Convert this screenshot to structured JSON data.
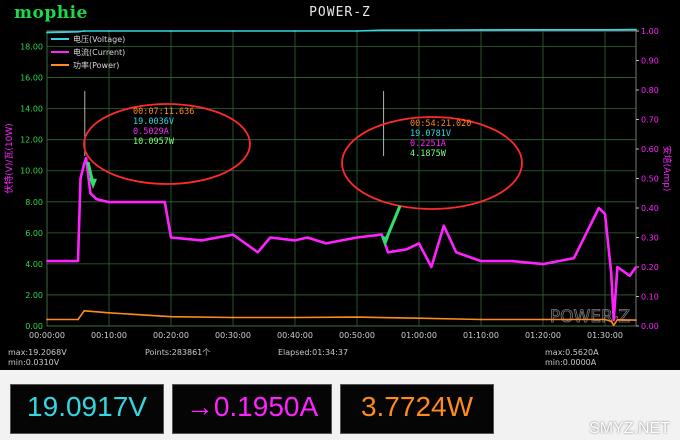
{
  "window": {
    "brand": "mophie",
    "title": "POWER-Z"
  },
  "chart_data": {
    "type": "line",
    "x_ticks": [
      "00:00:00",
      "00:10:00",
      "00:20:00",
      "00:30:00",
      "00:40:00",
      "00:50:00",
      "01:00:00",
      "01:10:00",
      "01:20:00",
      "01:30:00"
    ],
    "xlim": [
      0,
      95
    ],
    "x_unit": "minutes",
    "ylabel_left": "伏特(V)/瓦(10W)",
    "ylabel_right": "安培(Amp)",
    "ylim_left": [
      0,
      19
    ],
    "ylim_right": [
      0,
      1.0
    ],
    "y_ticks_left": [
      "0.00",
      "2.00",
      "4.00",
      "6.00",
      "8.00",
      "10.00",
      "12.00",
      "14.00",
      "16.00",
      "18.00"
    ],
    "y_ticks_right": [
      "0.00",
      "0.10",
      "0.20",
      "0.30",
      "0.40",
      "0.50",
      "0.60",
      "0.70",
      "0.80",
      "0.90",
      "1.00"
    ],
    "legend": [
      "电压(Voltage)",
      "电流(Current)",
      "功率(Power)"
    ],
    "legend_position": "top-left",
    "grid": true,
    "colors": {
      "voltage": "#35d6e0",
      "current": "#ff22ff",
      "power": "#ff8a1e"
    },
    "series": [
      {
        "name": "电压(Voltage)",
        "axis": "left",
        "x": [
          0,
          5,
          6,
          10,
          20,
          30,
          40,
          50,
          54,
          60,
          70,
          80,
          90,
          95
        ],
        "values": [
          18.9,
          18.95,
          19.0,
          19.0,
          19.0,
          19.0,
          19.0,
          19.0,
          19.05,
          19.05,
          19.07,
          19.08,
          19.08,
          19.09
        ]
      },
      {
        "name": "电流(Current)",
        "axis": "right",
        "x": [
          0,
          2,
          5,
          5.4,
          6,
          6.3,
          7,
          8,
          10,
          15,
          19,
          20,
          25,
          30,
          34,
          36,
          40,
          42,
          45,
          50,
          54,
          55,
          58,
          60,
          62,
          64,
          66,
          70,
          75,
          80,
          85,
          89,
          90,
          91,
          91.4,
          92,
          94,
          95
        ],
        "values": [
          0.22,
          0.22,
          0.22,
          0.5,
          0.55,
          0.57,
          0.45,
          0.43,
          0.42,
          0.42,
          0.42,
          0.3,
          0.29,
          0.31,
          0.25,
          0.3,
          0.29,
          0.3,
          0.28,
          0.3,
          0.31,
          0.25,
          0.26,
          0.28,
          0.2,
          0.34,
          0.25,
          0.22,
          0.22,
          0.21,
          0.23,
          0.4,
          0.38,
          0.18,
          0.02,
          0.2,
          0.17,
          0.2
        ]
      },
      {
        "name": "功率(Power)",
        "axis": "left",
        "x": [
          0,
          5,
          6,
          10,
          20,
          30,
          40,
          50,
          60,
          70,
          80,
          90,
          91,
          91.4,
          92,
          95
        ],
        "values": [
          0.42,
          0.42,
          0.98,
          0.85,
          0.6,
          0.55,
          0.55,
          0.57,
          0.5,
          0.42,
          0.42,
          0.42,
          0.3,
          0.05,
          0.4,
          0.38
        ]
      }
    ],
    "annotations": [
      {
        "time": "00:07:11.636",
        "voltage": "19.0036V",
        "current": "0.5029A",
        "power": "10.0957W"
      },
      {
        "time": "00:54:21.020",
        "voltage": "19.0781V",
        "current": "0.2251A",
        "power": "4.1875W"
      }
    ],
    "chart_watermark": "POWER-Z"
  },
  "stats": {
    "max_left": "max:19.2068V",
    "min_left": "min:0.0310V",
    "points": "Points:283861个",
    "elapsed": "Elapsed:01:34:37",
    "max_right": "max:0.5620A",
    "min_right": "min:0.0000A"
  },
  "readouts": {
    "voltage": "19.0917V",
    "current": "→0.1950A",
    "power": "3.7724W"
  },
  "watermark": "SMYZ.NET"
}
